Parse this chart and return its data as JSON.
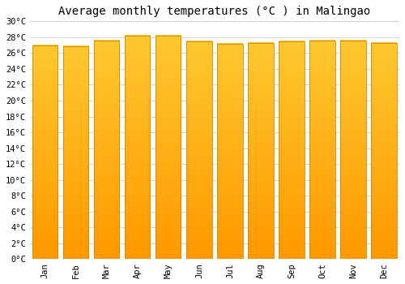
{
  "title": "Average monthly temperatures (°C ) in Malingao",
  "months": [
    "Jan",
    "Feb",
    "Mar",
    "Apr",
    "May",
    "Jun",
    "Jul",
    "Aug",
    "Sep",
    "Oct",
    "Nov",
    "Dec"
  ],
  "values": [
    27.0,
    26.9,
    27.6,
    28.2,
    28.2,
    27.5,
    27.2,
    27.3,
    27.5,
    27.6,
    27.6,
    27.3
  ],
  "bar_color_top": "#FFC830",
  "bar_color_bottom": "#FF9900",
  "bar_edge_color": "#CC8800",
  "background_color": "#FFFFFF",
  "grid_color": "#CCCCCC",
  "ylim": [
    0,
    30
  ],
  "yticks": [
    0,
    2,
    4,
    6,
    8,
    10,
    12,
    14,
    16,
    18,
    20,
    22,
    24,
    26,
    28,
    30
  ],
  "title_fontsize": 10,
  "tick_fontsize": 7.5,
  "title_font": "monospace",
  "tick_font": "monospace"
}
